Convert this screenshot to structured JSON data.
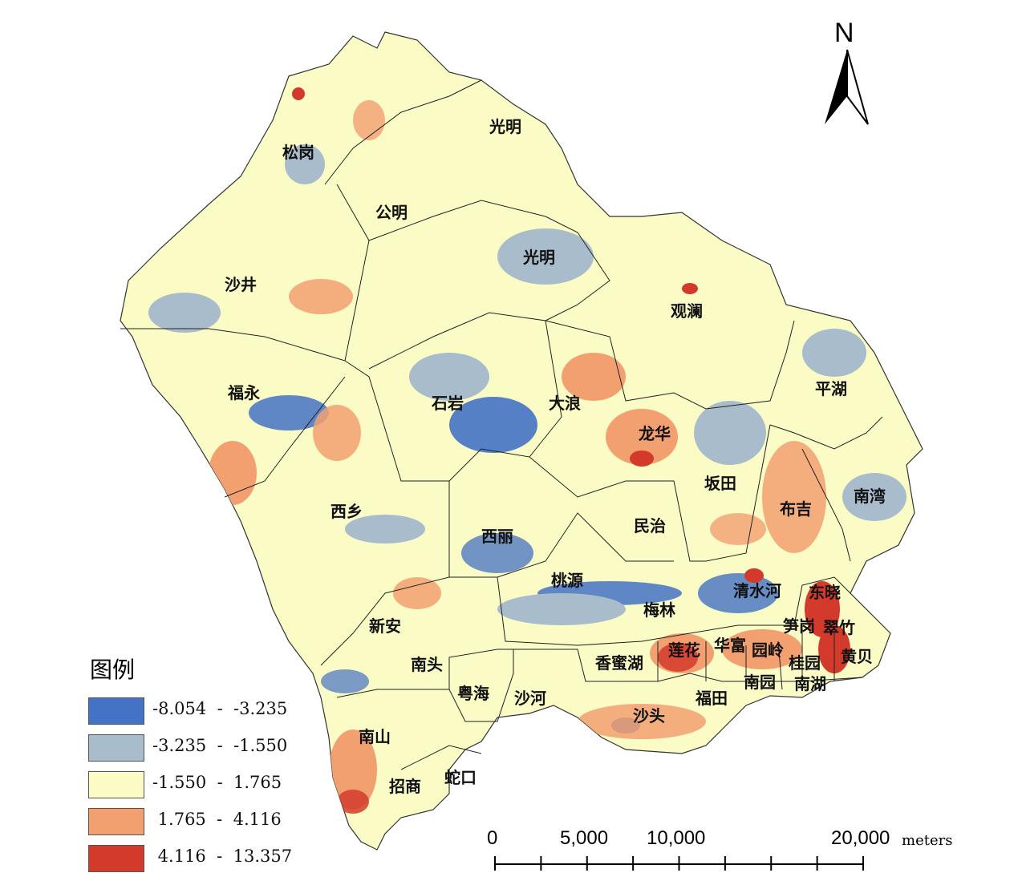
{
  "map": {
    "districts": [
      {
        "name": "光明",
        "key": "guangming-north"
      },
      {
        "name": "松岗",
        "key": "songgang"
      },
      {
        "name": "公明",
        "key": "gongming"
      },
      {
        "name": "光明",
        "key": "guangming"
      },
      {
        "name": "沙井",
        "key": "shajing"
      },
      {
        "name": "观澜",
        "key": "guanlan"
      },
      {
        "name": "平湖",
        "key": "pinghu"
      },
      {
        "name": "福永",
        "key": "fuyong"
      },
      {
        "name": "石岩",
        "key": "shiyan"
      },
      {
        "name": "大浪",
        "key": "dalang"
      },
      {
        "name": "龙华",
        "key": "longhua"
      },
      {
        "name": "坂田",
        "key": "bantian"
      },
      {
        "name": "布吉",
        "key": "buji"
      },
      {
        "name": "南湾",
        "key": "nanwan"
      },
      {
        "name": "西乡",
        "key": "xixiang"
      },
      {
        "name": "民治",
        "key": "minzhi"
      },
      {
        "name": "西丽",
        "key": "xili"
      },
      {
        "name": "桃源",
        "key": "taoyuan"
      },
      {
        "name": "清水河",
        "key": "qingshuihe"
      },
      {
        "name": "东晓",
        "key": "dongxiao"
      },
      {
        "name": "梅林",
        "key": "meilin"
      },
      {
        "name": "笋岗",
        "key": "sungang"
      },
      {
        "name": "翠竹",
        "key": "cuizhu"
      },
      {
        "name": "新安",
        "key": "xinan"
      },
      {
        "name": "华富",
        "key": "huafu"
      },
      {
        "name": "莲花",
        "key": "lianhua"
      },
      {
        "name": "园岭",
        "key": "yuanling"
      },
      {
        "name": "黄贝",
        "key": "huangbei"
      },
      {
        "name": "南头",
        "key": "nantou"
      },
      {
        "name": "香蜜湖",
        "key": "xiangmihu"
      },
      {
        "name": "桂园",
        "key": "guiyuan"
      },
      {
        "name": "南园",
        "key": "nanyuan"
      },
      {
        "name": "南湖",
        "key": "nanhu"
      },
      {
        "name": "粤海",
        "key": "yuehai"
      },
      {
        "name": "沙河",
        "key": "shahe"
      },
      {
        "name": "福田",
        "key": "futian"
      },
      {
        "name": "沙头",
        "key": "shatou"
      },
      {
        "name": "南山",
        "key": "nanshan"
      },
      {
        "name": "招商",
        "key": "zhaoshang"
      },
      {
        "name": "蛇口",
        "key": "shekou"
      }
    ]
  },
  "legend": {
    "title": "图例",
    "classes": [
      {
        "label": "-8.054  -  -3.235",
        "color": "#4472c4"
      },
      {
        "label": "-3.235  -  -1.550",
        "color": "#a9bccb"
      },
      {
        "label": "-1.550  -  1.765",
        "color": "#fbfbc6"
      },
      {
        "label": " 1.765  -  4.116",
        "color": "#f2a070"
      },
      {
        "label": " 4.116  -  13.357",
        "color": "#d43a2c"
      }
    ]
  },
  "north_arrow": {
    "label": "N"
  },
  "scale_bar": {
    "labels": [
      "0",
      "5,000",
      "10,000",
      "20,000"
    ],
    "unit": "meters"
  }
}
